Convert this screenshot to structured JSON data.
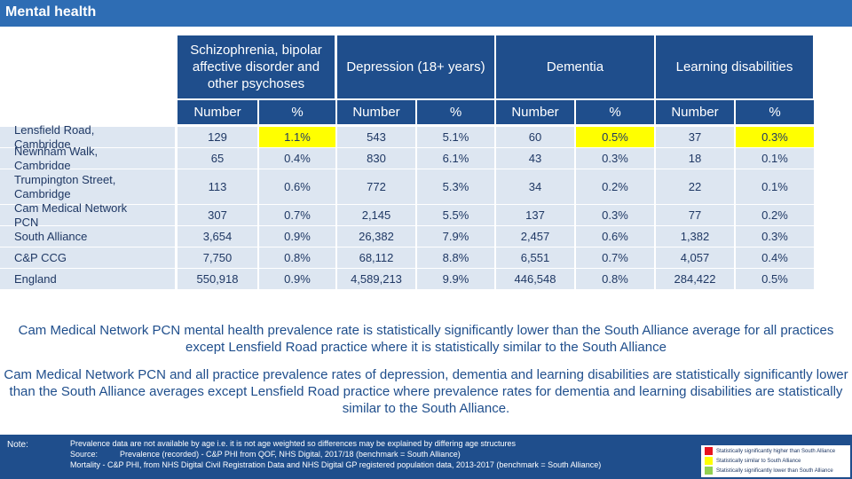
{
  "title": "Mental health",
  "table": {
    "groups": [
      {
        "label": "Schizophrenia, bipolar affective disorder and other psychoses"
      },
      {
        "label": "Depression (18+ years)"
      },
      {
        "label": "Dementia"
      },
      {
        "label": "Learning disabilities"
      }
    ],
    "sub_headers": [
      "Number",
      "%",
      "Number",
      "%",
      "Number",
      "%",
      "Number",
      "%"
    ],
    "rows": [
      {
        "label": "Lensfield Road, Cambridge",
        "cells": [
          "129",
          "1.1%",
          "543",
          "5.1%",
          "60",
          "0.5%",
          "37",
          "0.3%"
        ],
        "highlight": [
          false,
          true,
          false,
          false,
          false,
          true,
          false,
          true
        ]
      },
      {
        "label": "Newnham Walk, Cambridge",
        "cells": [
          "65",
          "0.4%",
          "830",
          "6.1%",
          "43",
          "0.3%",
          "18",
          "0.1%"
        ],
        "highlight": [
          false,
          false,
          false,
          false,
          false,
          false,
          false,
          false
        ]
      },
      {
        "label": "Trumpington Street, Cambridge",
        "cells": [
          "113",
          "0.6%",
          "772",
          "5.3%",
          "34",
          "0.2%",
          "22",
          "0.1%"
        ],
        "highlight": [
          false,
          false,
          false,
          false,
          false,
          false,
          false,
          false
        ]
      },
      {
        "label": "Cam Medical Network PCN",
        "cells": [
          "307",
          "0.7%",
          "2,145",
          "5.5%",
          "137",
          "0.3%",
          "77",
          "0.2%"
        ],
        "highlight": [
          false,
          false,
          false,
          false,
          false,
          false,
          false,
          false
        ]
      },
      {
        "label": "South Alliance",
        "cells": [
          "3,654",
          "0.9%",
          "26,382",
          "7.9%",
          "2,457",
          "0.6%",
          "1,382",
          "0.3%"
        ],
        "highlight": [
          false,
          false,
          false,
          false,
          false,
          false,
          false,
          false
        ]
      },
      {
        "label": "C&P CCG",
        "cells": [
          "7,750",
          "0.8%",
          "68,112",
          "8.8%",
          "6,551",
          "0.7%",
          "4,057",
          "0.4%"
        ],
        "highlight": [
          false,
          false,
          false,
          false,
          false,
          false,
          false,
          false
        ]
      },
      {
        "label": "England",
        "cells": [
          "550,918",
          "0.9%",
          "4,589,213",
          "9.9%",
          "446,548",
          "0.8%",
          "284,422",
          "0.5%"
        ],
        "highlight": [
          false,
          false,
          false,
          false,
          false,
          false,
          false,
          false
        ]
      }
    ]
  },
  "paragraphs": [
    "Cam Medical Network PCN mental health prevalence rate is statistically significantly lower than the South Alliance average for all practices except Lensfield Road practice where it is statistically similar to the South Alliance",
    "Cam Medical Network PCN and all practice prevalence rates of depression, dementia and learning disabilities are statistically significantly lower than the South Alliance averages except Lensfield Road practice where prevalence rates for dementia and learning disabilities are statistically similar to the South Alliance."
  ],
  "footer": {
    "note_label": "Note:",
    "lines": [
      "Prevalence data are not available by age i.e. it is not age weighted so differences may be explained by differing age structures",
      "Source:          Prevalence (recorded) - C&P PHI from QOF, NHS Digital, 2017/18 (benchmark = South Alliance)",
      "Mortality - C&P PHI, from NHS Digital Civil Registration Data and NHS Digital GP registered population data, 2013-2017 (benchmark = South Alliance)"
    ]
  },
  "legend": [
    {
      "label": "Statistically significantly higher than South Alliance",
      "color": "#e8141e"
    },
    {
      "label": "Statistically similar to South Alliance",
      "color": "#ffff00"
    },
    {
      "label": "Statistically significantly lower than South Alliance",
      "color": "#92d050"
    }
  ]
}
